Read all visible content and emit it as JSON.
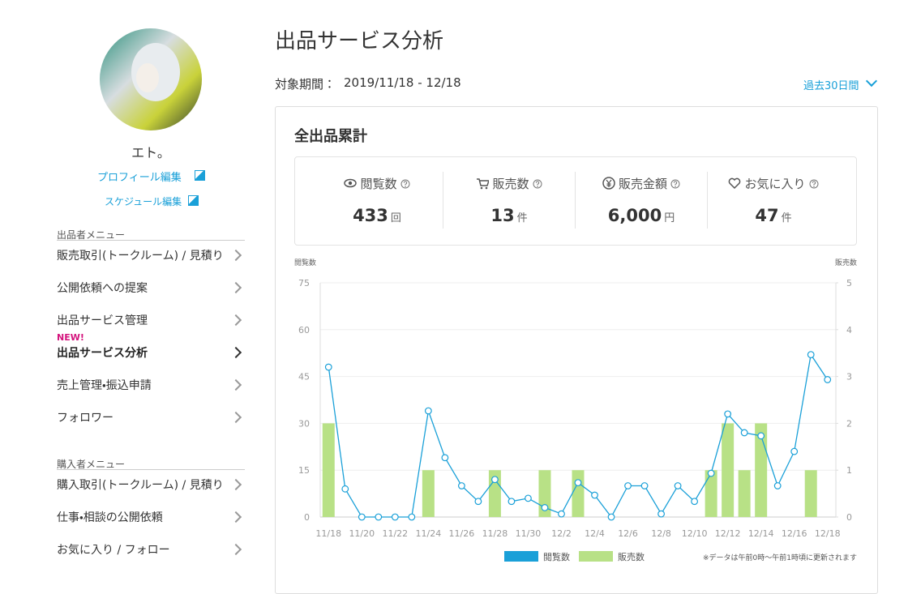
{
  "sidebar": {
    "user_name": "エト。",
    "profile_edit": "プロフィール編集",
    "schedule_edit": "スケジュール編集",
    "new_badge": "NEW!",
    "seller_menu": {
      "heading": "出品者メニュー",
      "items": [
        "販売取引(トークルーム) / 見積り",
        "公開依頼への提案",
        "出品サービス管理",
        "出品サービス分析",
        "売上管理・振込申請",
        "フォロワー"
      ]
    },
    "buyer_menu": {
      "heading": "購入者メニュー",
      "items": [
        "購入取引(トークルーム) / 見積り",
        "仕事・相談の公開依頼",
        "お気に入り / フォロー"
      ]
    }
  },
  "header": {
    "title": "出品サービス分析",
    "period_label": "対象期間：",
    "period": "2019/11/18 - 12/18",
    "range_select": "過去30日間"
  },
  "summary": {
    "title": "全出品累計",
    "stats": [
      {
        "label": "閲覧数",
        "value": "433",
        "unit": "回"
      },
      {
        "label": "販売数",
        "value": "13",
        "unit": "件"
      },
      {
        "label": "販売金額",
        "value": "6,000",
        "unit": "円"
      },
      {
        "label": "お気に入り",
        "value": "47",
        "unit": "件"
      }
    ]
  },
  "chart_data": {
    "type": "combo",
    "y_axis_label": "閲覧数",
    "y2_axis_label": "販売数",
    "note": "※データは午前0時〜午前1時頃に更新されます",
    "categories": [
      "11/18",
      null,
      "11/20",
      null,
      "11/22",
      null,
      "11/24",
      null,
      "11/26",
      null,
      "11/28",
      null,
      "11/30",
      null,
      "12/2",
      null,
      "12/4",
      null,
      "12/6",
      null,
      "12/8",
      null,
      "12/10",
      null,
      "12/12",
      null,
      "12/14",
      null,
      "12/16",
      null,
      "12/18"
    ],
    "series": [
      {
        "name": "閲覧数",
        "color": "#1aa0d8",
        "kind": "line",
        "values": [
          48,
          9,
          0,
          0,
          0,
          0,
          34,
          19,
          10,
          5,
          12,
          5,
          6,
          3,
          1,
          11,
          7,
          0,
          10,
          10,
          1,
          10,
          5,
          14,
          33,
          27,
          26,
          10,
          21,
          52,
          44
        ]
      },
      {
        "name": "販売数",
        "color": "#b8e186",
        "kind": "bar",
        "axis": "y2",
        "values": [
          2,
          0,
          0,
          0,
          0,
          0,
          1,
          0,
          0,
          0,
          1,
          0,
          0,
          1,
          0,
          1,
          0,
          0,
          0,
          0,
          0,
          0,
          0,
          1,
          2,
          1,
          2,
          0,
          0,
          1,
          0
        ]
      }
    ],
    "ylim": [
      0,
      75
    ],
    "yticks": [
      0,
      15,
      30,
      45,
      60,
      75
    ],
    "y2lim": [
      0,
      5
    ],
    "y2ticks": [
      0,
      1,
      2,
      3,
      4,
      5
    ],
    "grid": true
  }
}
